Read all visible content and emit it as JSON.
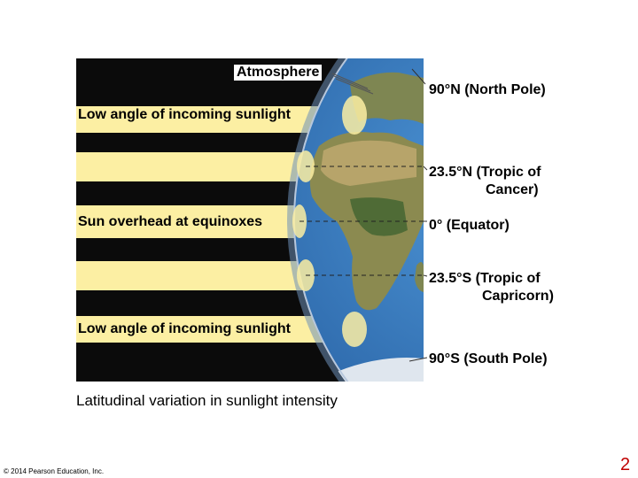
{
  "labels": {
    "atmosphere": "Atmosphere",
    "low_angle_top": "Low angle of incoming sunlight",
    "sun_overhead": "Sun overhead at equinoxes",
    "low_angle_bottom": "Low angle of incoming sunlight"
  },
  "latitudes": {
    "north_pole": "90°N (North Pole)",
    "tropic_cancer_1": "23.5°N (Tropic of",
    "tropic_cancer_2": "Cancer)",
    "equator": "0° (Equator)",
    "tropic_capricorn_1": "23.5°S (Tropic of",
    "tropic_capricorn_2": "Capricorn)",
    "south_pole": "90°S (South Pole)"
  },
  "caption": "Latitudinal variation in sunlight intensity",
  "copyright": "© 2014 Pearson Education, Inc.",
  "page_number": "2",
  "colors": {
    "space": "#0b0b0b",
    "sunlight": "#fcefa3",
    "ocean": "#2b6fb3",
    "land": "#7d8a4a",
    "page_number": "#c00000"
  }
}
